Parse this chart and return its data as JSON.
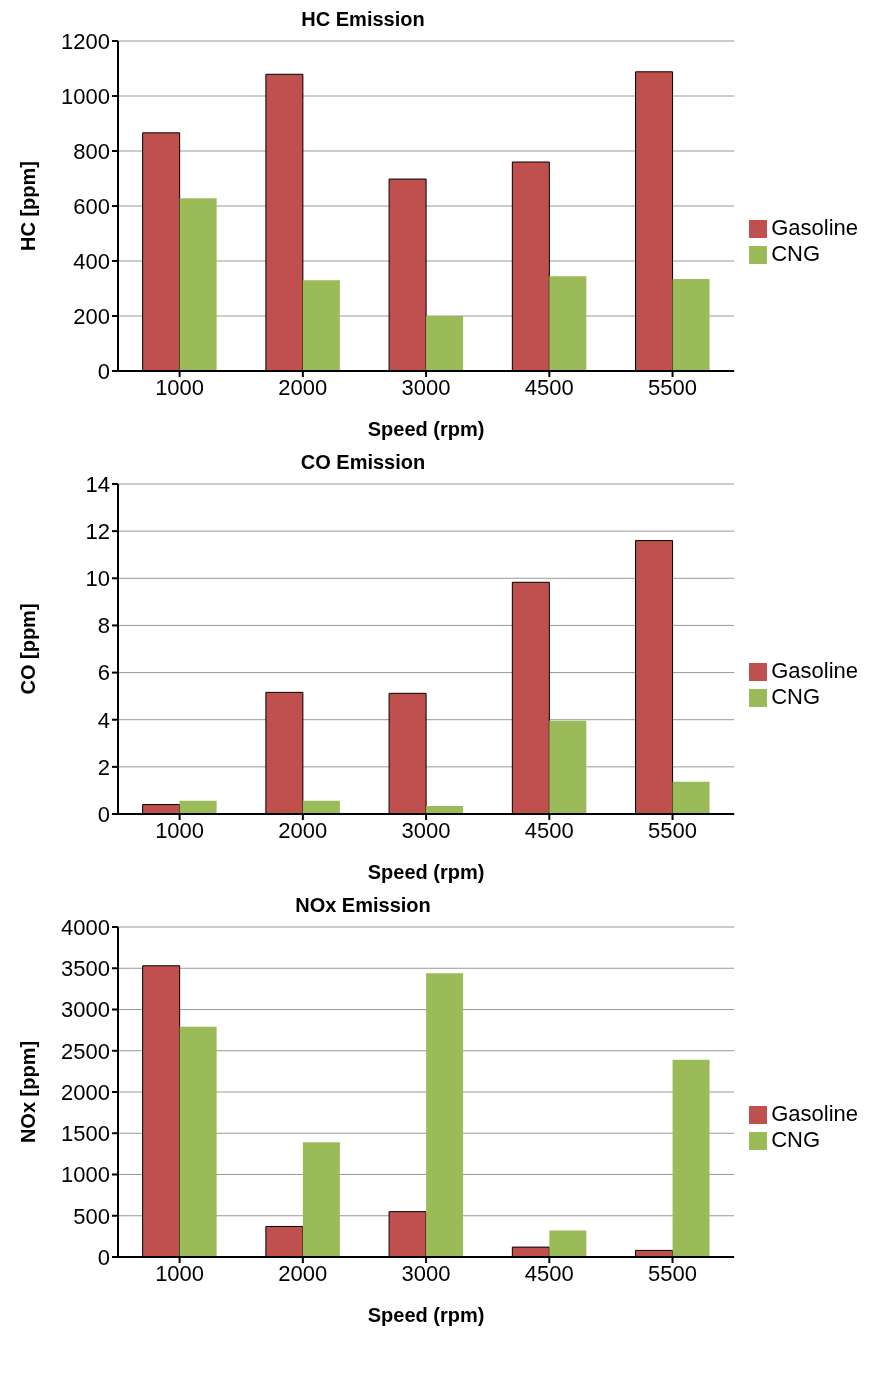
{
  "chart_data": [
    {
      "type": "bar",
      "title": "HC Emission",
      "xlabel": "Speed (rpm)",
      "ylabel": "HC [ppm]",
      "categories": [
        "1000",
        "2000",
        "3000",
        "4500",
        "5500"
      ],
      "series": [
        {
          "name": "Gasoline",
          "color": "#c0504d",
          "values": [
            866,
            1079,
            698,
            760,
            1088
          ]
        },
        {
          "name": "CNG",
          "color": "#9bbb59",
          "values": [
            628,
            330,
            200,
            345,
            335
          ]
        }
      ],
      "ylim": [
        0,
        1200
      ],
      "yticks": [
        0,
        200,
        400,
        600,
        800,
        1000,
        1200
      ],
      "grid": "y",
      "legend": "right"
    },
    {
      "type": "bar",
      "title": "CO Emission",
      "xlabel": "Speed (rpm)",
      "ylabel": "CO [ppm]",
      "categories": [
        "1000",
        "2000",
        "3000",
        "4500",
        "5500"
      ],
      "series": [
        {
          "name": "Gasoline",
          "color": "#c0504d",
          "values": [
            0.4,
            5.16,
            5.12,
            9.83,
            11.6
          ]
        },
        {
          "name": "CNG",
          "color": "#9bbb59",
          "values": [
            0.56,
            0.56,
            0.34,
            3.96,
            1.37
          ]
        }
      ],
      "ylim": [
        0,
        14
      ],
      "yticks": [
        0,
        2,
        4,
        6,
        8,
        10,
        12,
        14
      ],
      "grid": "y",
      "legend": "right"
    },
    {
      "type": "bar",
      "title": "NOx Emission",
      "xlabel": "Speed (rpm)",
      "ylabel": "NOx [ppm]",
      "categories": [
        "1000",
        "2000",
        "3000",
        "4500",
        "5500"
      ],
      "series": [
        {
          "name": "Gasoline",
          "color": "#c0504d",
          "values": [
            3530,
            370,
            550,
            120,
            80
          ]
        },
        {
          "name": "CNG",
          "color": "#9bbb59",
          "values": [
            2790,
            1390,
            3440,
            320,
            2390
          ]
        }
      ],
      "ylim": [
        0,
        4000
      ],
      "yticks": [
        0,
        500,
        1000,
        1500,
        2000,
        2500,
        3000,
        3500,
        4000
      ],
      "grid": "y",
      "legend": "right"
    }
  ]
}
